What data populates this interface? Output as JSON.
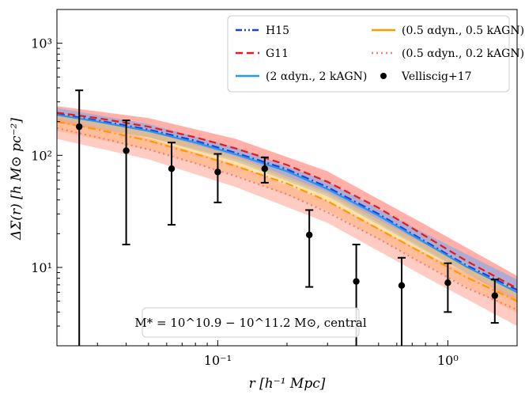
{
  "chart_data": {
    "type": "line",
    "xscale": "log",
    "yscale": "log",
    "xlim": [
      0.02,
      2.0
    ],
    "ylim": [
      2,
      2000
    ],
    "xlabel": "r [h⁻¹ Mpc]",
    "ylabel": "ΔΣ(r) [h M⊙ pc⁻²]",
    "x_ticks": [
      {
        "value": 0.1,
        "label": "10⁻¹"
      },
      {
        "value": 1,
        "label": "10⁰"
      }
    ],
    "y_ticks": [
      {
        "value": 10,
        "label": "10¹"
      },
      {
        "value": 100,
        "label": "10²"
      },
      {
        "value": 1000,
        "label": "10³"
      }
    ],
    "annotation": "M* = 10^10.9 − 10^11.2 M⊙, central",
    "legend": [
      {
        "label": "H15",
        "color": "#1f3fd6",
        "style": "dashdot-dots"
      },
      {
        "label": "G11",
        "color": "#e41a1c",
        "style": "dashed"
      },
      {
        "label": "(2 αdyn., 2 kAGN)",
        "color": "#2196f3",
        "style": "solid"
      },
      {
        "label": "(0.5 αdyn., 0.5 kAGN)",
        "color": "#ff9900",
        "style": "solid"
      },
      {
        "label": "(0.5 αdyn., 0.2 kAGN)",
        "color": "#f08070",
        "style": "dotted"
      },
      {
        "label": "Velliscig+17",
        "color": "#000000",
        "style": "marker"
      }
    ],
    "series": [
      {
        "name": "H15",
        "color": "#1f3fd6",
        "style": "dashdot",
        "x": [
          0.02,
          0.03,
          0.05,
          0.08,
          0.12,
          0.2,
          0.3,
          0.5,
          0.8,
          1.2,
          2.0
        ],
        "y": [
          235,
          205,
          170,
          135,
          105,
          75,
          52,
          30,
          17,
          10.5,
          6.3
        ]
      },
      {
        "name": "G11",
        "color": "#e41a1c",
        "style": "dashed",
        "x": [
          0.02,
          0.03,
          0.05,
          0.08,
          0.12,
          0.2,
          0.3,
          0.5,
          0.8,
          1.2,
          2.0
        ],
        "y": [
          240,
          215,
          180,
          145,
          115,
          82,
          58,
          34,
          19,
          11.5,
          6.5
        ]
      },
      {
        "name": "(2 αdyn., 2 kAGN)",
        "color": "#2196f3",
        "style": "solid",
        "x": [
          0.02,
          0.03,
          0.05,
          0.08,
          0.12,
          0.2,
          0.3,
          0.5,
          0.8,
          1.2,
          2.0
        ],
        "y": [
          230,
          200,
          165,
          130,
          102,
          72,
          50,
          29,
          16.5,
          10.2,
          6.0
        ]
      },
      {
        "name": "(0.5 αdyn., 0.5 kAGN)",
        "color": "#ff9900",
        "style": "dashdot",
        "x": [
          0.02,
          0.03,
          0.05,
          0.08,
          0.12,
          0.2,
          0.3,
          0.5,
          0.8,
          1.2,
          2.0
        ],
        "y": [
          200,
          170,
          135,
          103,
          80,
          56,
          39,
          22,
          13,
          8.2,
          5.0
        ]
      },
      {
        "name": "(0.5 αdyn., 0.2 kAGN)",
        "color": "#f08070",
        "style": "dotted",
        "x": [
          0.02,
          0.03,
          0.05,
          0.08,
          0.12,
          0.2,
          0.3,
          0.5,
          0.8,
          1.2,
          2.0
        ],
        "y": [
          175,
          145,
          113,
          85,
          65,
          45,
          31,
          18,
          10.5,
          6.6,
          4.2
        ]
      }
    ],
    "bands": [
      {
        "name": "G11",
        "color": "#ff6f61",
        "opacity": 0.55,
        "x": [
          0.02,
          0.05,
          0.12,
          0.3,
          0.8,
          2.0
        ],
        "lo": [
          195,
          145,
          92,
          45,
          14.5,
          4.9
        ],
        "hi": [
          275,
          215,
          140,
          72,
          24,
          8.4
        ]
      },
      {
        "name": "(2 αdyn., 2 kAGN)",
        "color": "#6fa8f0",
        "opacity": 0.55,
        "x": [
          0.02,
          0.05,
          0.12,
          0.3,
          0.8,
          2.0
        ],
        "lo": [
          200,
          145,
          88,
          43,
          14,
          5.0
        ],
        "hi": [
          265,
          190,
          118,
          58,
          20,
          7.8
        ]
      },
      {
        "name": "(0.5 αdyn., 0.5 kAGN)",
        "color": "#ffc966",
        "opacity": 0.55,
        "x": [
          0.02,
          0.05,
          0.12,
          0.3,
          0.8,
          2.0
        ],
        "lo": [
          165,
          112,
          66,
          32,
          10.5,
          3.9
        ],
        "hi": [
          240,
          165,
          98,
          47,
          16,
          6.3
        ]
      },
      {
        "name": "(0.5 αdyn., 0.2 kAGN)",
        "color": "#ff9a8a",
        "opacity": 0.5,
        "x": [
          0.02,
          0.05,
          0.12,
          0.3,
          0.8,
          2.0
        ],
        "lo": [
          140,
          92,
          52,
          25,
          8.2,
          3.0
        ],
        "hi": [
          215,
          142,
          82,
          39,
          13.3,
          5.4
        ]
      }
    ],
    "observations": {
      "name": "Velliscig+17",
      "x": [
        0.025,
        0.04,
        0.063,
        0.1,
        0.16,
        0.25,
        0.4,
        0.63,
        1.0,
        1.6
      ],
      "y": [
        180,
        110,
        76,
        71,
        76,
        19.5,
        7.5,
        6.9,
        7.3,
        5.6
      ],
      "err_lo": [
        178.5,
        94,
        52,
        33,
        19,
        12.8,
        5.6,
        5.0,
        3.3,
        2.4
      ],
      "err_hi": [
        200,
        95,
        54,
        32,
        20,
        13,
        8.5,
        5.3,
        3.6,
        2.2
      ]
    }
  }
}
